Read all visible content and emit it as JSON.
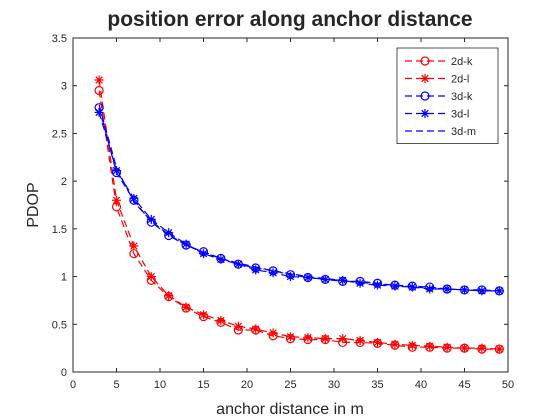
{
  "chart_data": {
    "type": "line",
    "title": "position error along anchor distance",
    "xlabel": "anchor distance in m",
    "ylabel": "PDOP",
    "xlim": [
      0,
      50
    ],
    "ylim": [
      0,
      3.5
    ],
    "xticks": [
      0,
      5,
      10,
      15,
      20,
      25,
      30,
      35,
      40,
      45,
      50
    ],
    "yticks": [
      0,
      0.5,
      1,
      1.5,
      2,
      2.5,
      3,
      3.5
    ],
    "legend_position": "top-right",
    "x": [
      3,
      5,
      7,
      9,
      11,
      13,
      15,
      17,
      19,
      21,
      23,
      25,
      27,
      29,
      31,
      33,
      35,
      37,
      39,
      41,
      43,
      45,
      47,
      49
    ],
    "series": [
      {
        "name": "2d-k",
        "color": "#ff0000",
        "marker": "circle",
        "dash": "dashed",
        "values": [
          2.95,
          1.73,
          1.24,
          0.96,
          0.79,
          0.67,
          0.58,
          0.52,
          0.44,
          0.44,
          0.38,
          0.35,
          0.34,
          0.34,
          0.31,
          0.31,
          0.3,
          0.28,
          0.26,
          0.26,
          0.25,
          0.25,
          0.24,
          0.24
        ]
      },
      {
        "name": "2d-l",
        "color": "#ff0000",
        "marker": "star",
        "dash": "dashed",
        "values": [
          3.06,
          1.8,
          1.32,
          1.0,
          0.8,
          0.68,
          0.6,
          0.54,
          0.48,
          0.45,
          0.41,
          0.37,
          0.36,
          0.35,
          0.35,
          0.33,
          0.31,
          0.29,
          0.28,
          0.27,
          0.26,
          0.25,
          0.25,
          0.24
        ]
      },
      {
        "name": "3d-k",
        "color": "#0000ff",
        "marker": "circle",
        "dash": "dashed",
        "values": [
          2.77,
          2.09,
          1.8,
          1.57,
          1.43,
          1.33,
          1.26,
          1.19,
          1.13,
          1.09,
          1.06,
          1.02,
          0.99,
          0.97,
          0.95,
          0.95,
          0.93,
          0.91,
          0.9,
          0.89,
          0.87,
          0.86,
          0.86,
          0.85
        ]
      },
      {
        "name": "3d-l",
        "color": "#0000ff",
        "marker": "star",
        "dash": "dashed",
        "values": [
          2.72,
          2.11,
          1.82,
          1.6,
          1.46,
          1.34,
          1.24,
          1.18,
          1.13,
          1.07,
          1.04,
          1.0,
          0.99,
          0.97,
          0.96,
          0.93,
          0.91,
          0.9,
          0.89,
          0.87,
          0.87,
          0.86,
          0.85,
          0.85
        ]
      },
      {
        "name": "3d-m",
        "color": "#0000ff",
        "marker": "none",
        "dash": "dashed",
        "values": [
          2.8,
          2.14,
          1.78,
          1.58,
          1.44,
          1.33,
          1.25,
          1.19,
          1.14,
          1.1,
          1.06,
          1.03,
          1.0,
          0.98,
          0.96,
          0.94,
          0.92,
          0.91,
          0.89,
          0.88,
          0.87,
          0.86,
          0.85,
          0.85
        ]
      }
    ]
  }
}
